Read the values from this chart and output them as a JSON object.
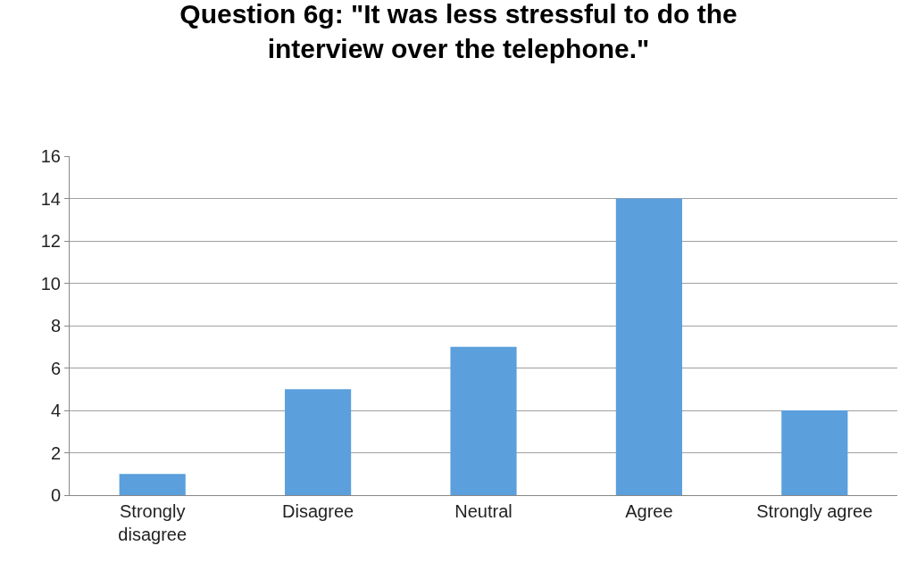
{
  "chart_data": {
    "type": "bar",
    "title": "Question 6g: \"It was less stressful to do the interview over the telephone.\"",
    "categories": [
      "Strongly disagree",
      "Disagree",
      "Neutral",
      "Agree",
      "Strongly agree"
    ],
    "values": [
      1,
      5,
      7,
      14,
      4
    ],
    "color": "#5b9fdc",
    "ylim": [
      0,
      16
    ],
    "yticks": [
      0,
      2,
      4,
      6,
      8,
      10,
      12,
      14,
      16
    ],
    "grid": "y",
    "legend": false
  }
}
